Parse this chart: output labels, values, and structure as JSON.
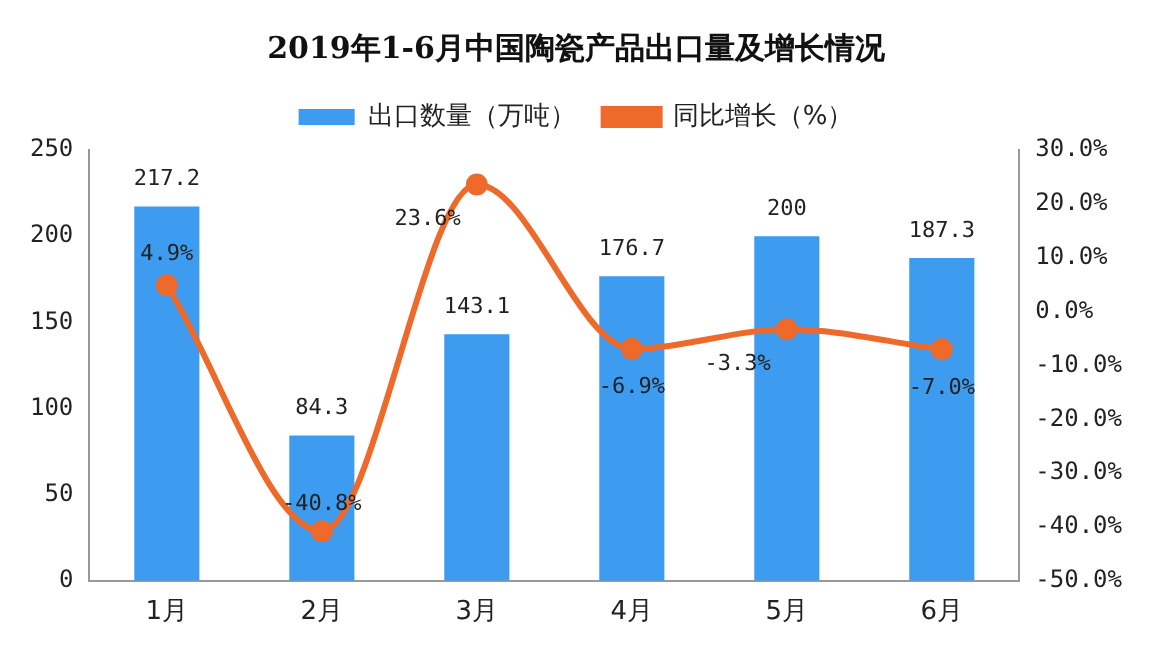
{
  "chart_data": {
    "type": "bar",
    "title": "2019年1-6月中国陶瓷产品出口量及增长情况",
    "categories": [
      "1月",
      "2月",
      "3月",
      "4月",
      "5月",
      "6月"
    ],
    "series": [
      {
        "name": "出口数量（万吨）",
        "color": "#3d9bf0",
        "values": [
          217.2,
          84.3,
          143.1,
          176.7,
          200,
          187.3
        ],
        "value_labels": [
          "217.2",
          "84.3",
          "143.1",
          "176.7",
          "200",
          "187.3"
        ]
      },
      {
        "name": "同比增长（%）",
        "type": "line",
        "axis": "y2",
        "color": "#ee6a2a",
        "marker": "circle",
        "values": [
          4.9,
          -40.8,
          23.6,
          -6.9,
          -3.3,
          -7.0
        ],
        "value_labels": [
          "4.9%",
          "-40.8%",
          "23.6%",
          "-6.9%",
          "-3.3%",
          "-7.0%"
        ]
      }
    ],
    "ylim": [
      0,
      250
    ],
    "yticks": [
      0,
      50,
      100,
      150,
      200,
      250
    ],
    "y2lim": [
      -50,
      30
    ],
    "y2ticks": [
      {
        "value": -50,
        "label": "-50.0%"
      },
      {
        "value": -40,
        "label": "-40.0%"
      },
      {
        "value": -30,
        "label": "-30.0%"
      },
      {
        "value": -20,
        "label": "-20.0%"
      },
      {
        "value": -10,
        "label": "-10.0%"
      },
      {
        "value": 0,
        "label": "0.0%"
      },
      {
        "value": 10,
        "label": "10.0%"
      },
      {
        "value": 20,
        "label": "20.0%"
      },
      {
        "value": 30,
        "label": "30.0%"
      }
    ],
    "grid": false,
    "legend": "top"
  }
}
